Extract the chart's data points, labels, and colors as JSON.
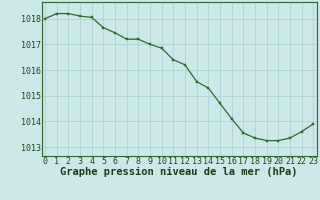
{
  "x": [
    0,
    1,
    2,
    3,
    4,
    5,
    6,
    7,
    8,
    9,
    10,
    11,
    12,
    13,
    14,
    15,
    16,
    17,
    18,
    19,
    20,
    21,
    22,
    23
  ],
  "y": [
    1018.0,
    1018.2,
    1018.2,
    1018.1,
    1018.05,
    1017.65,
    1017.45,
    1017.2,
    1017.2,
    1017.0,
    1016.85,
    1016.4,
    1016.2,
    1015.55,
    1015.3,
    1014.7,
    1014.1,
    1013.55,
    1013.35,
    1013.25,
    1013.25,
    1013.35,
    1013.6,
    1013.9
  ],
  "line_color": "#2d6a2d",
  "marker_color": "#2d6a2d",
  "bg_color": "#cce8e8",
  "grid_color": "#aacece",
  "xlabel": "Graphe pression niveau de la mer (hPa)",
  "xlabel_fontsize": 7.5,
  "yticks": [
    1013,
    1014,
    1015,
    1016,
    1017,
    1018
  ],
  "xticks": [
    0,
    1,
    2,
    3,
    4,
    5,
    6,
    7,
    8,
    9,
    10,
    11,
    12,
    13,
    14,
    15,
    16,
    17,
    18,
    19,
    20,
    21,
    22,
    23
  ],
  "ylim": [
    1012.65,
    1018.65
  ],
  "xlim": [
    -0.3,
    23.3
  ],
  "tick_fontsize": 6.0,
  "spine_color": "#336633",
  "line_width": 0.9,
  "marker_size": 2.0
}
